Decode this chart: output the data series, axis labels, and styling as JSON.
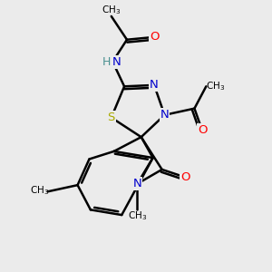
{
  "background_color": "#ebebeb",
  "atom_colors": {
    "C": "#000000",
    "N": "#0000cc",
    "O": "#ff0000",
    "S": "#aaaa00",
    "H": "#4a9090"
  },
  "bond_color": "#000000",
  "bond_width": 1.8,
  "figsize": [
    3.0,
    3.0
  ],
  "dpi": 100
}
